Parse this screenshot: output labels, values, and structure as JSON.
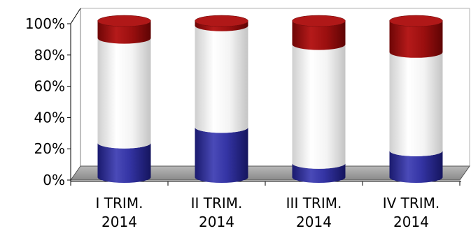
{
  "chart_data": {
    "type": "bar",
    "stacked": true,
    "percent_stacked": true,
    "style": "3d-cylinder",
    "categories": [
      "I TRIM.\n2014",
      "II TRIM.\n2014",
      "III TRIM.\n2014",
      "IV TRIM.\n2014"
    ],
    "series": [
      {
        "color": "#2e2e9b",
        "values": [
          22,
          32,
          9,
          17
        ]
      },
      {
        "color": "#f2f2f2",
        "values": [
          67,
          65,
          76,
          63
        ]
      },
      {
        "color": "#9b0b0b",
        "values": [
          11,
          3,
          15,
          20
        ]
      }
    ],
    "y_ticks": [
      "0%",
      "20%",
      "40%",
      "60%",
      "80%",
      "100%"
    ],
    "ylim": [
      0,
      100
    ],
    "grid": false,
    "legend": "none",
    "title": "",
    "xlabel": "",
    "ylabel": ""
  }
}
